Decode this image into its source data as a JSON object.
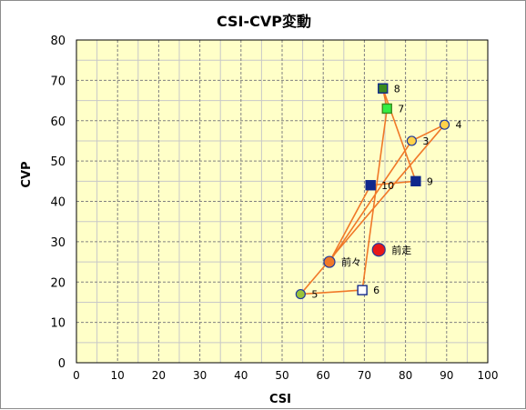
{
  "chart_data": {
    "type": "scatter",
    "title": "CSI-CVP変動",
    "xlabel": "CSI",
    "ylabel": "CVP",
    "xlim": [
      0,
      100
    ],
    "ylim": [
      0,
      80
    ],
    "x_major_step": 10,
    "y_major_step": 10,
    "x_minor_step": 5,
    "y_minor_step": 5,
    "x_ticks": [
      "0",
      "10",
      "20",
      "30",
      "40",
      "50",
      "60",
      "70",
      "80",
      "90",
      "100"
    ],
    "y_ticks": [
      "0",
      "10",
      "20",
      "30",
      "40",
      "50",
      "60",
      "70",
      "80"
    ],
    "grid": true,
    "colors": {
      "plot_bg": "#ffffc8",
      "grid_major": "#808080",
      "grid_minor": "#c8c8c8",
      "line": "#f07828",
      "navy": "#10288c",
      "green_square": "#33ee44",
      "dark_green": "#3a8a1e",
      "yellow_fill": "#ffd24a",
      "blue_outline": "#1f3a9c",
      "olive_fill": "#9ac43a",
      "orange_fill": "#f07828",
      "red_fill": "#e81818"
    },
    "line_order": [
      "前々",
      "3",
      "4",
      "5",
      "6",
      "7",
      "8",
      "9",
      "10",
      "前々"
    ],
    "points": [
      {
        "label": "前走",
        "x": 73.5,
        "y": 28,
        "marker": "circle-large",
        "fill": "#e81818",
        "stroke": "#1f3a9c"
      },
      {
        "label": "前々",
        "x": 61.5,
        "y": 25,
        "marker": "circle-medium",
        "fill": "#f07828",
        "stroke": "#1f3a9c"
      },
      {
        "label": "3",
        "x": 81.5,
        "y": 55,
        "marker": "circle",
        "fill": "#ffd24a",
        "stroke": "#1f3a9c"
      },
      {
        "label": "4",
        "x": 89.5,
        "y": 59,
        "marker": "circle",
        "fill": "#ffd24a",
        "stroke": "#1f3a9c"
      },
      {
        "label": "5",
        "x": 54.5,
        "y": 17,
        "marker": "circle",
        "fill": "#9ac43a",
        "stroke": "#1f3a9c"
      },
      {
        "label": "6",
        "x": 69.5,
        "y": 18,
        "marker": "square",
        "fill": "#ffffff",
        "stroke": "#10288c"
      },
      {
        "label": "7",
        "x": 75.5,
        "y": 63,
        "marker": "square",
        "fill": "#33ee44",
        "stroke": "#3a8a1e"
      },
      {
        "label": "8",
        "x": 74.5,
        "y": 68,
        "marker": "square",
        "fill": "#3a8a1e",
        "stroke": "#10288c"
      },
      {
        "label": "9",
        "x": 82.5,
        "y": 45,
        "marker": "square",
        "fill": "#10288c",
        "stroke": "#10288c"
      },
      {
        "label": "10",
        "x": 71.5,
        "y": 44,
        "marker": "square",
        "fill": "#10288c",
        "stroke": "#10288c"
      }
    ]
  }
}
